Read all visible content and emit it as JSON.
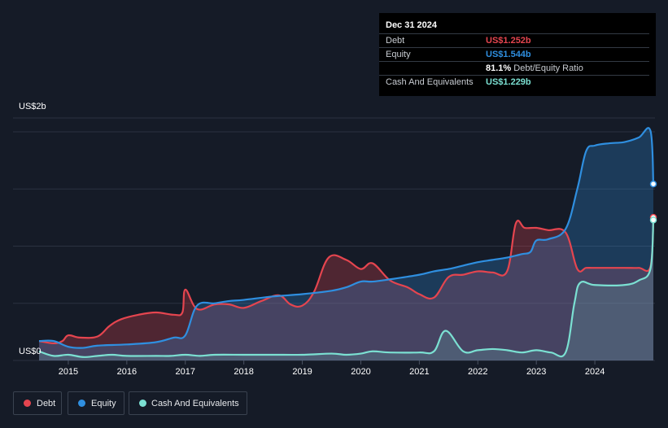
{
  "tooltip": {
    "date": "Dec 31 2024",
    "rows": [
      {
        "label": "Debt",
        "value": "US$1.252b",
        "color": "#e5454f"
      },
      {
        "label": "Equity",
        "value": "US$1.544b",
        "color": "#2f8fe0"
      },
      {
        "label": "",
        "value": "81.1%",
        "sub": "Debt/Equity Ratio",
        "color": "#ffffff"
      },
      {
        "label": "Cash And Equivalents",
        "value": "US$1.229b",
        "color": "#7be0d2"
      }
    ]
  },
  "legend": [
    {
      "label": "Debt",
      "color": "#e5454f"
    },
    {
      "label": "Equity",
      "color": "#2f8fe0"
    },
    {
      "label": "Cash And Equivalents",
      "color": "#7be0d2"
    }
  ],
  "chart_data": {
    "type": "area",
    "y_axis_labels": [
      "US$2b",
      "US$0"
    ],
    "ylim": [
      0,
      2.0
    ],
    "xlim": [
      2014.5,
      2025.0
    ],
    "x_ticks": [
      "2015",
      "2016",
      "2017",
      "2018",
      "2019",
      "2020",
      "2021",
      "2022",
      "2023",
      "2024"
    ],
    "grid": true,
    "legend_position": "bottom-left",
    "series": [
      {
        "name": "Debt",
        "color": "#e5454f",
        "x": [
          2014.5,
          2014.75,
          2014.9,
          2015.0,
          2015.2,
          2015.5,
          2015.7,
          2015.9,
          2016.2,
          2016.5,
          2016.8,
          2016.95,
          2017.0,
          2017.2,
          2017.5,
          2017.75,
          2018.0,
          2018.3,
          2018.6,
          2018.8,
          2019.0,
          2019.2,
          2019.45,
          2019.75,
          2020.0,
          2020.2,
          2020.5,
          2020.8,
          2021.0,
          2021.25,
          2021.5,
          2021.75,
          2022.0,
          2022.25,
          2022.5,
          2022.65,
          2022.8,
          2023.0,
          2023.2,
          2023.5,
          2023.7,
          2023.85,
          2024.0,
          2024.5,
          2024.75,
          2024.95,
          2025.0
        ],
        "values": [
          0.17,
          0.15,
          0.17,
          0.22,
          0.2,
          0.21,
          0.3,
          0.36,
          0.4,
          0.42,
          0.4,
          0.42,
          0.62,
          0.45,
          0.49,
          0.49,
          0.46,
          0.52,
          0.57,
          0.49,
          0.48,
          0.6,
          0.9,
          0.88,
          0.8,
          0.85,
          0.7,
          0.64,
          0.58,
          0.55,
          0.73,
          0.75,
          0.78,
          0.77,
          0.78,
          1.2,
          1.16,
          1.16,
          1.14,
          1.12,
          0.8,
          0.81,
          0.81,
          0.81,
          0.81,
          0.82,
          1.252
        ]
      },
      {
        "name": "Equity",
        "color": "#2f8fe0",
        "x": [
          2014.5,
          2014.75,
          2015.0,
          2015.25,
          2015.5,
          2016.0,
          2016.5,
          2016.8,
          2017.0,
          2017.2,
          2017.5,
          2017.75,
          2018.0,
          2018.5,
          2019.0,
          2019.5,
          2019.75,
          2020.0,
          2020.2,
          2020.5,
          2021.0,
          2021.25,
          2021.5,
          2021.75,
          2022.0,
          2022.25,
          2022.5,
          2022.75,
          2022.9,
          2023.0,
          2023.2,
          2023.5,
          2023.7,
          2023.85,
          2024.0,
          2024.25,
          2024.5,
          2024.75,
          2024.95,
          2025.0
        ],
        "values": [
          0.17,
          0.17,
          0.12,
          0.11,
          0.13,
          0.14,
          0.16,
          0.2,
          0.22,
          0.48,
          0.5,
          0.52,
          0.53,
          0.56,
          0.58,
          0.61,
          0.64,
          0.69,
          0.69,
          0.71,
          0.75,
          0.78,
          0.8,
          0.83,
          0.86,
          0.88,
          0.9,
          0.93,
          0.95,
          1.05,
          1.06,
          1.15,
          1.5,
          1.83,
          1.88,
          1.9,
          1.91,
          1.95,
          2.01,
          1.544
        ]
      },
      {
        "name": "Cash And Equivalents",
        "color": "#7be0d2",
        "x": [
          2014.5,
          2014.75,
          2015.0,
          2015.25,
          2015.5,
          2015.75,
          2016.0,
          2016.5,
          2016.75,
          2017.0,
          2017.25,
          2017.5,
          2018.0,
          2018.5,
          2019.0,
          2019.5,
          2019.75,
          2020.0,
          2020.2,
          2020.5,
          2021.0,
          2021.25,
          2021.45,
          2021.75,
          2022.0,
          2022.25,
          2022.5,
          2022.75,
          2023.0,
          2023.25,
          2023.5,
          2023.65,
          2023.75,
          2024.0,
          2024.5,
          2024.75,
          2024.95,
          2025.0
        ],
        "values": [
          0.08,
          0.04,
          0.05,
          0.03,
          0.04,
          0.05,
          0.04,
          0.04,
          0.04,
          0.05,
          0.04,
          0.05,
          0.05,
          0.05,
          0.05,
          0.06,
          0.05,
          0.06,
          0.08,
          0.07,
          0.07,
          0.08,
          0.26,
          0.08,
          0.09,
          0.1,
          0.09,
          0.07,
          0.09,
          0.07,
          0.07,
          0.5,
          0.68,
          0.66,
          0.66,
          0.7,
          0.8,
          1.229
        ]
      }
    ]
  }
}
